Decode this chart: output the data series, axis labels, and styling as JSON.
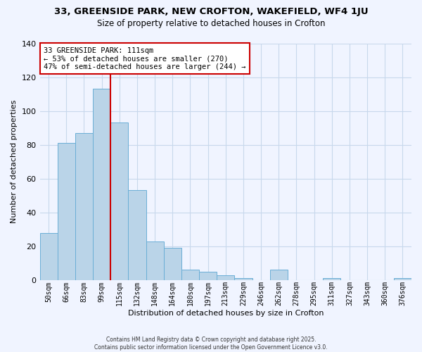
{
  "title": "33, GREENSIDE PARK, NEW CROFTON, WAKEFIELD, WF4 1JU",
  "subtitle": "Size of property relative to detached houses in Crofton",
  "xlabel": "Distribution of detached houses by size in Crofton",
  "ylabel": "Number of detached properties",
  "bar_labels": [
    "50sqm",
    "66sqm",
    "83sqm",
    "99sqm",
    "115sqm",
    "132sqm",
    "148sqm",
    "164sqm",
    "180sqm",
    "197sqm",
    "213sqm",
    "229sqm",
    "246sqm",
    "262sqm",
    "278sqm",
    "295sqm",
    "311sqm",
    "327sqm",
    "343sqm",
    "360sqm",
    "376sqm"
  ],
  "bar_values": [
    28,
    81,
    87,
    113,
    93,
    53,
    23,
    19,
    6,
    5,
    3,
    1,
    0,
    6,
    0,
    0,
    1,
    0,
    0,
    0,
    1
  ],
  "bar_color": "#bad4e8",
  "bar_edge_color": "#6aaed6",
  "grid_color": "#c8d8ec",
  "background_color": "#f0f4ff",
  "vline_color": "#cc0000",
  "vline_index": 3.5,
  "annotation_text": "33 GREENSIDE PARK: 111sqm\n← 53% of detached houses are smaller (270)\n47% of semi-detached houses are larger (244) →",
  "annotation_box_color": "#ffffff",
  "annotation_box_edge": "#cc0000",
  "ylim": [
    0,
    140
  ],
  "yticks": [
    0,
    20,
    40,
    60,
    80,
    100,
    120,
    140
  ],
  "footer_line1": "Contains HM Land Registry data © Crown copyright and database right 2025.",
  "footer_line2": "Contains public sector information licensed under the Open Government Licence v3.0."
}
